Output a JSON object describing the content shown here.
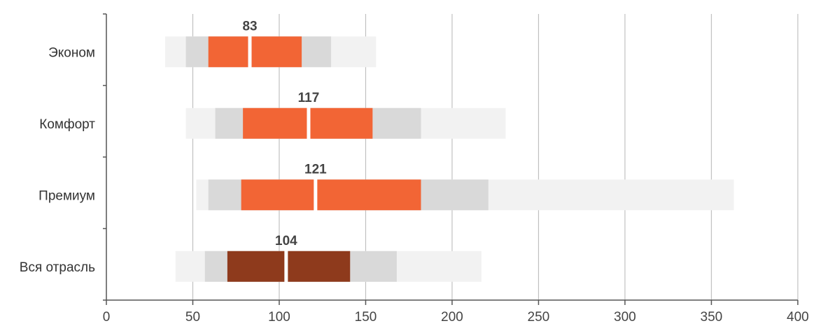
{
  "chart_data": {
    "type": "bar",
    "orientation": "horizontal",
    "categories": [
      "Эконом",
      "Комфорт",
      "Премиум",
      "Вся отрасль"
    ],
    "xlim": [
      0,
      400
    ],
    "xticks": [
      0,
      50,
      100,
      150,
      200,
      250,
      300,
      350,
      400
    ],
    "grid": true,
    "series": [
      {
        "min": 34,
        "p10": 46,
        "p25": 59,
        "median": 83,
        "p75": 113,
        "p90": 130,
        "max": 156
      },
      {
        "min": 46,
        "p10": 63,
        "p25": 79,
        "median": 117,
        "p75": 154,
        "p90": 182,
        "max": 231
      },
      {
        "min": 52,
        "p10": 59,
        "p25": 78,
        "median": 121,
        "p75": 182,
        "p90": 221,
        "max": 363
      },
      {
        "min": 40,
        "p10": 57,
        "p25": 70,
        "median": 104,
        "p75": 141,
        "p90": 168,
        "max": 217
      }
    ],
    "median_labels": [
      "83",
      "117",
      "121",
      "104"
    ],
    "colors": {
      "outer": "#f2f2f2",
      "middle": "#d9d9d9",
      "core": "#f26535",
      "core_total": "#8e3a1c",
      "grid": "#c0c0c0",
      "axis": "#555555"
    }
  }
}
